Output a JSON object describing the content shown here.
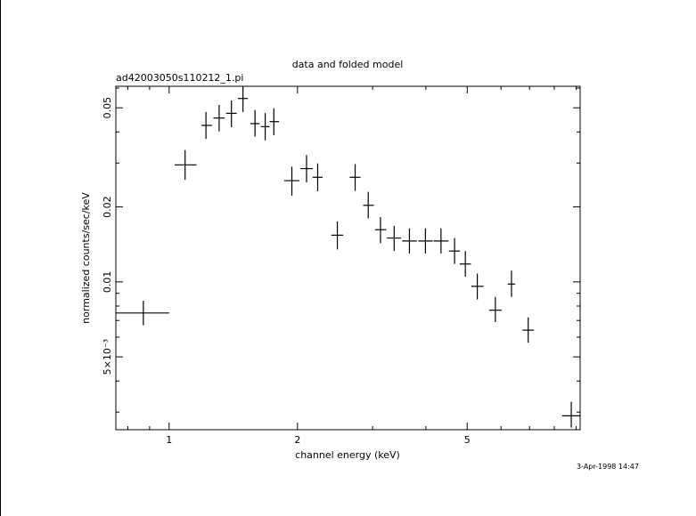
{
  "chart_data": {
    "type": "scatter",
    "title": "data and folded model",
    "subtitle": "ad42003050s110212_1.pi",
    "xlabel": "channel energy (keV)",
    "ylabel": "normalized counts/sec/keV",
    "x_scale": "log",
    "y_scale": "log",
    "xlim": [
      0.75,
      9.2
    ],
    "ylim": [
      0.00255,
      0.061
    ],
    "x_ticks": [
      {
        "value": 1,
        "label": "1"
      },
      {
        "value": 2,
        "label": "2"
      },
      {
        "value": 5,
        "label": "5"
      }
    ],
    "y_ticks": [
      {
        "value": 0.005,
        "label": "5×10⁻³"
      },
      {
        "value": 0.01,
        "label": "0.01"
      },
      {
        "value": 0.02,
        "label": "0.02"
      },
      {
        "value": 0.05,
        "label": "0.05"
      }
    ],
    "grid": false,
    "series": [
      {
        "points": [
          {
            "x": 0.87,
            "xlo": 0.75,
            "xhi": 1.0,
            "y": 0.0075,
            "ylo": 0.0067,
            "yhi": 0.0084
          },
          {
            "x": 1.09,
            "xlo": 1.03,
            "xhi": 1.16,
            "y": 0.0295,
            "ylo": 0.0257,
            "yhi": 0.0338
          },
          {
            "x": 1.22,
            "xlo": 1.19,
            "xhi": 1.26,
            "y": 0.0425,
            "ylo": 0.0375,
            "yhi": 0.0481
          },
          {
            "x": 1.31,
            "xlo": 1.27,
            "xhi": 1.35,
            "y": 0.0455,
            "ylo": 0.0402,
            "yhi": 0.0513
          },
          {
            "x": 1.4,
            "xlo": 1.36,
            "xhi": 1.44,
            "y": 0.0475,
            "ylo": 0.0418,
            "yhi": 0.0535
          },
          {
            "x": 1.49,
            "xlo": 1.45,
            "xhi": 1.53,
            "y": 0.0545,
            "ylo": 0.0481,
            "yhi": 0.061
          },
          {
            "x": 1.59,
            "xlo": 1.55,
            "xhi": 1.63,
            "y": 0.0432,
            "ylo": 0.0383,
            "yhi": 0.049
          },
          {
            "x": 1.68,
            "xlo": 1.64,
            "xhi": 1.72,
            "y": 0.042,
            "ylo": 0.037,
            "yhi": 0.0476
          },
          {
            "x": 1.76,
            "xlo": 1.72,
            "xhi": 1.81,
            "y": 0.044,
            "ylo": 0.0388,
            "yhi": 0.0498
          },
          {
            "x": 1.94,
            "xlo": 1.86,
            "xhi": 2.02,
            "y": 0.0255,
            "ylo": 0.0222,
            "yhi": 0.029
          },
          {
            "x": 2.1,
            "xlo": 2.03,
            "xhi": 2.17,
            "y": 0.0285,
            "ylo": 0.0251,
            "yhi": 0.0323
          },
          {
            "x": 2.23,
            "xlo": 2.17,
            "xhi": 2.29,
            "y": 0.0263,
            "ylo": 0.0231,
            "yhi": 0.0299
          },
          {
            "x": 2.48,
            "xlo": 2.4,
            "xhi": 2.56,
            "y": 0.0154,
            "ylo": 0.0135,
            "yhi": 0.0175
          },
          {
            "x": 2.73,
            "xlo": 2.65,
            "xhi": 2.81,
            "y": 0.0263,
            "ylo": 0.0232,
            "yhi": 0.0297
          },
          {
            "x": 2.93,
            "xlo": 2.85,
            "xhi": 3.02,
            "y": 0.0203,
            "ylo": 0.018,
            "yhi": 0.023
          },
          {
            "x": 3.13,
            "xlo": 3.04,
            "xhi": 3.23,
            "y": 0.0162,
            "ylo": 0.0143,
            "yhi": 0.0182
          },
          {
            "x": 3.37,
            "xlo": 3.24,
            "xhi": 3.5,
            "y": 0.015,
            "ylo": 0.0133,
            "yhi": 0.0168
          },
          {
            "x": 3.66,
            "xlo": 3.52,
            "xhi": 3.81,
            "y": 0.0146,
            "ylo": 0.013,
            "yhi": 0.0164
          },
          {
            "x": 3.99,
            "xlo": 3.84,
            "xhi": 4.15,
            "y": 0.0146,
            "ylo": 0.013,
            "yhi": 0.0164
          },
          {
            "x": 4.34,
            "xlo": 4.17,
            "xhi": 4.52,
            "y": 0.0146,
            "ylo": 0.013,
            "yhi": 0.0164
          },
          {
            "x": 4.67,
            "xlo": 4.53,
            "xhi": 4.81,
            "y": 0.0133,
            "ylo": 0.0118,
            "yhi": 0.015
          },
          {
            "x": 4.95,
            "xlo": 4.8,
            "xhi": 5.1,
            "y": 0.0118,
            "ylo": 0.0105,
            "yhi": 0.0133
          },
          {
            "x": 5.28,
            "xlo": 5.11,
            "xhi": 5.46,
            "y": 0.0096,
            "ylo": 0.0085,
            "yhi": 0.0108
          },
          {
            "x": 5.82,
            "xlo": 5.63,
            "xhi": 6.02,
            "y": 0.0077,
            "ylo": 0.0069,
            "yhi": 0.0087
          },
          {
            "x": 6.35,
            "xlo": 6.22,
            "xhi": 6.48,
            "y": 0.0098,
            "ylo": 0.0087,
            "yhi": 0.0111
          },
          {
            "x": 6.95,
            "xlo": 6.74,
            "xhi": 7.17,
            "y": 0.0064,
            "ylo": 0.0057,
            "yhi": 0.0072
          },
          {
            "x": 8.77,
            "xlo": 8.35,
            "xhi": 9.2,
            "y": 0.0029,
            "ylo": 0.0026,
            "yhi": 0.0033
          }
        ]
      }
    ]
  },
  "timestamp": "3-Apr-1998 14:47"
}
